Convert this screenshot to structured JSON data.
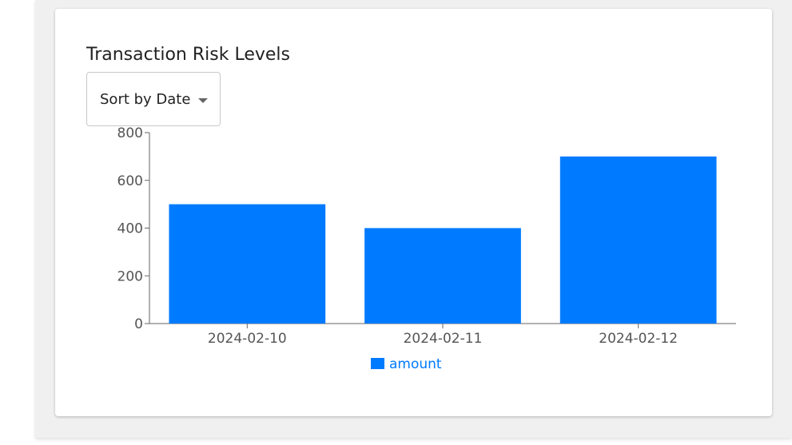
{
  "card": {
    "title": "Transaction Risk Levels"
  },
  "sort_control": {
    "label": "Sort by Date",
    "icon": "chevron-down-icon"
  },
  "colors": {
    "bar": "#007bff",
    "legend_text": "#007bff",
    "axis": "#666666"
  },
  "chart_data": {
    "type": "bar",
    "categories": [
      "2024-02-10",
      "2024-02-11",
      "2024-02-12"
    ],
    "series": [
      {
        "name": "amount",
        "values": [
          500,
          400,
          700
        ]
      }
    ],
    "yticks": [
      0,
      200,
      400,
      600,
      800
    ],
    "ylim": [
      0,
      800
    ],
    "legend": "bottom-center",
    "grid": false
  }
}
